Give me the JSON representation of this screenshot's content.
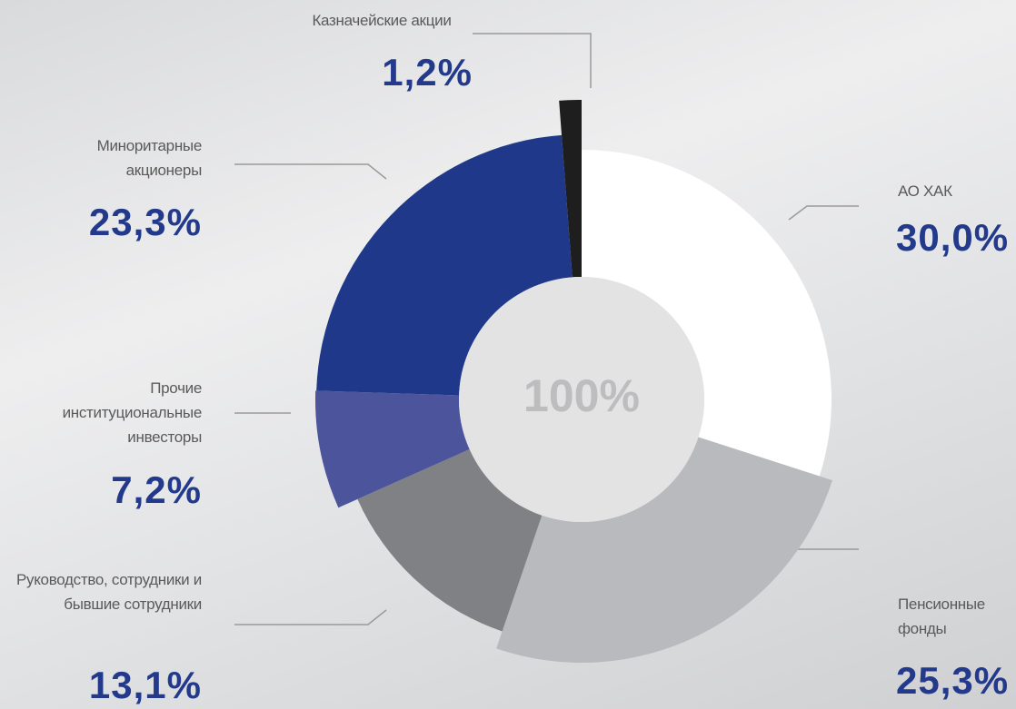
{
  "chart_data": {
    "type": "donut",
    "categories": [
      "АО ХАК",
      "Пенсионные фонды",
      "Руководство, сотрудники и бывшие сотрудники",
      "Прочие институциональные инвесторы",
      "Миноритарные акционеры",
      "Казначейские акции"
    ],
    "values": [
      30.0,
      25.3,
      13.1,
      7.2,
      23.3,
      1.2
    ],
    "value_labels": [
      "30,0%",
      "25,3%",
      "13,1%",
      "7,2%",
      "23,3%",
      "1,2%"
    ],
    "colors": [
      "#ffffff",
      "#b9babd",
      "#808184",
      "#4c559c",
      "#1f388a",
      "#1e1e1e"
    ],
    "center_label": "100%"
  }
}
